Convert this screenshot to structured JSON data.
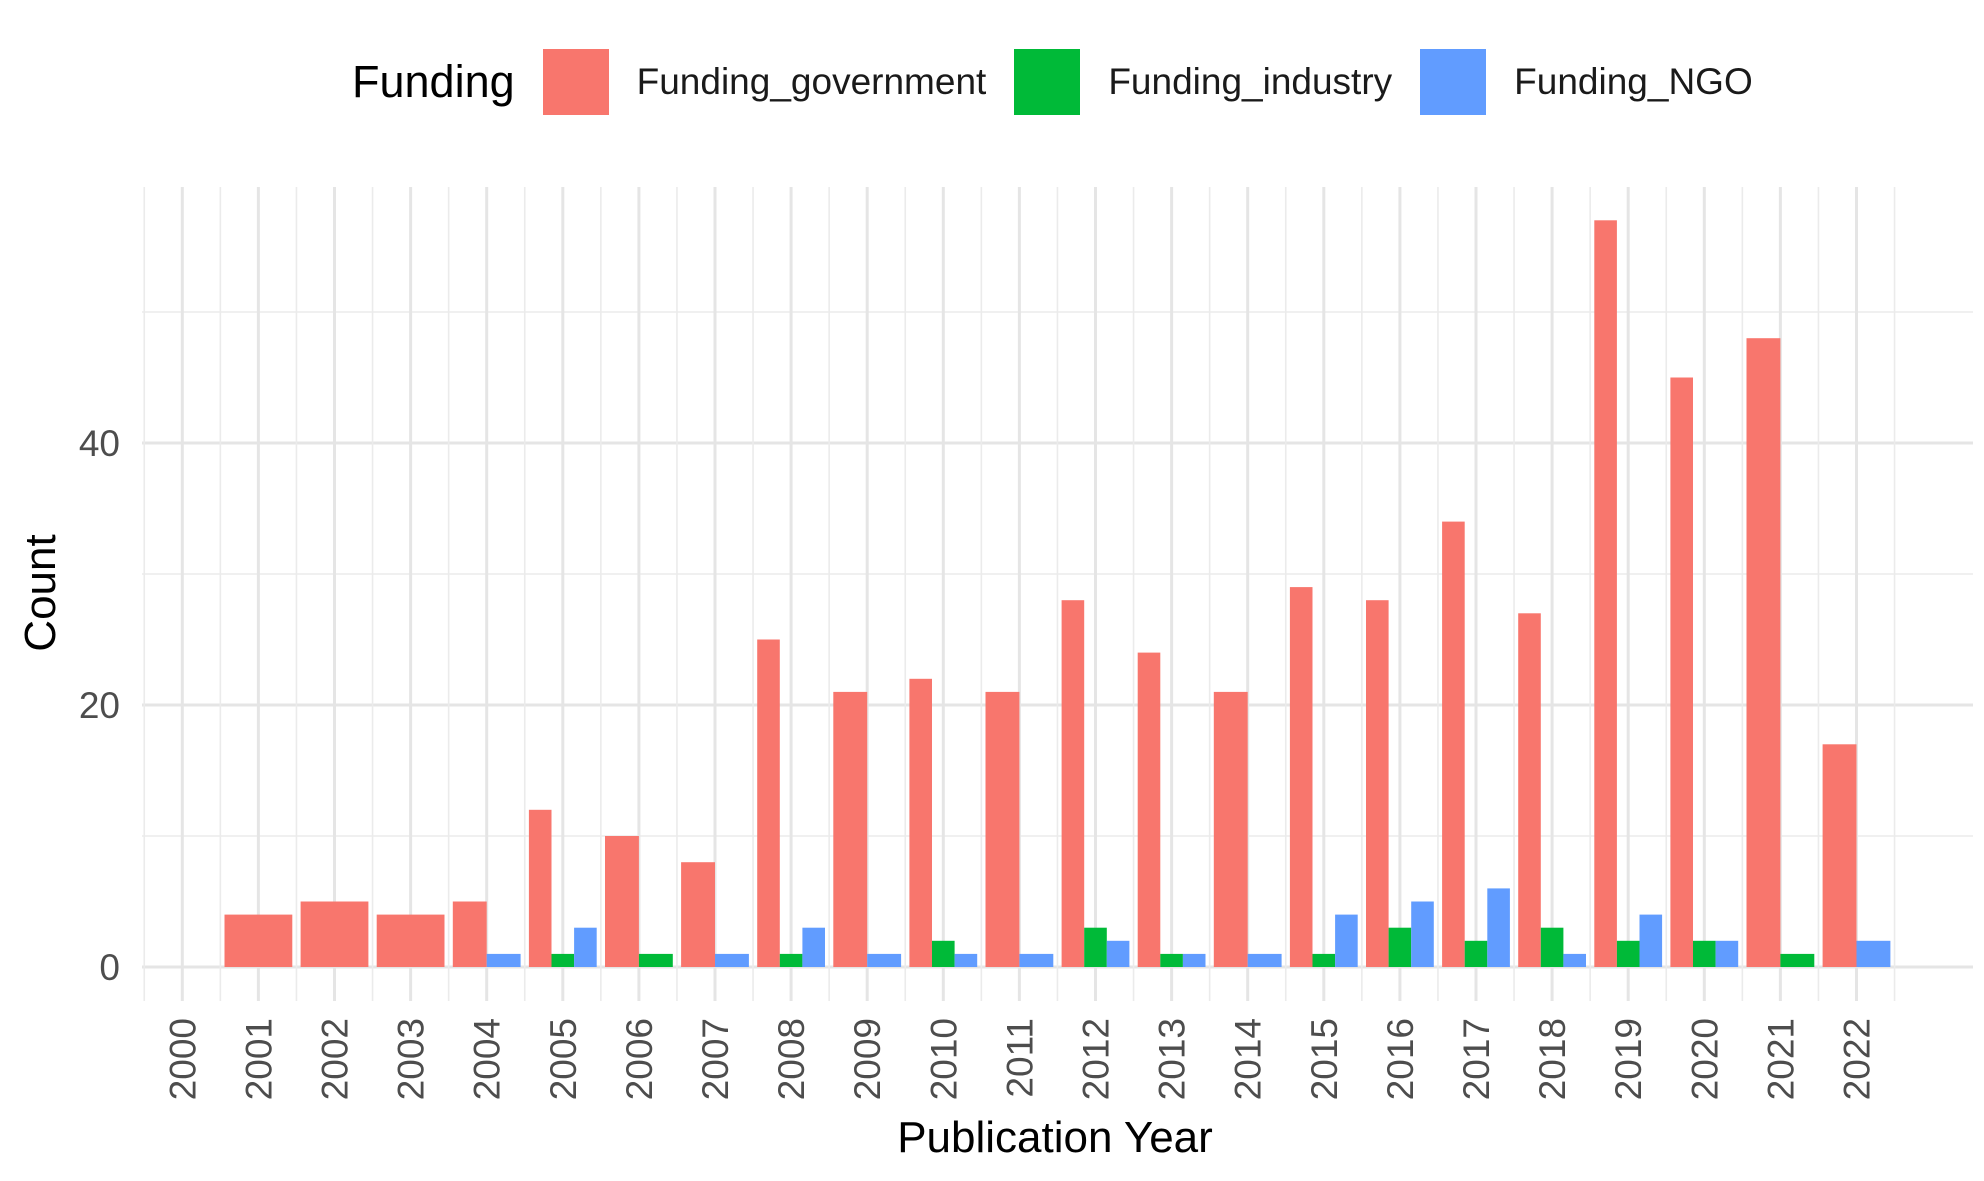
{
  "legend": {
    "title": "Funding"
  },
  "chart_data": {
    "type": "bar",
    "xlabel": "Publication Year",
    "ylabel": "Count",
    "ylim": [
      -2.5,
      60
    ],
    "yticks": [
      0,
      20,
      40
    ],
    "grid": true,
    "legend_position": "top",
    "categories": [
      "2000",
      "2001",
      "2002",
      "2003",
      "2004",
      "2005",
      "2006",
      "2007",
      "2008",
      "2009",
      "2010",
      "2011",
      "2012",
      "2013",
      "2014",
      "2015",
      "2016",
      "2017",
      "2018",
      "2019",
      "2020",
      "2021",
      "2022"
    ],
    "series": [
      {
        "name": "Funding_government",
        "color": "#F8766D",
        "values": [
          null,
          4,
          5,
          4,
          5,
          12,
          10,
          8,
          25,
          21,
          22,
          21,
          28,
          24,
          21,
          29,
          28,
          34,
          27,
          57,
          45,
          48,
          17
        ]
      },
      {
        "name": "Funding_industry",
        "color": "#00BA38",
        "values": [
          null,
          null,
          null,
          null,
          null,
          1,
          1,
          null,
          1,
          null,
          2,
          null,
          3,
          1,
          null,
          1,
          3,
          2,
          3,
          2,
          2,
          1,
          null
        ]
      },
      {
        "name": "Funding_NGO",
        "color": "#619CFF",
        "values": [
          null,
          null,
          null,
          null,
          1,
          3,
          null,
          1,
          3,
          1,
          1,
          1,
          2,
          1,
          1,
          4,
          5,
          6,
          1,
          4,
          2,
          null,
          2
        ]
      }
    ]
  }
}
